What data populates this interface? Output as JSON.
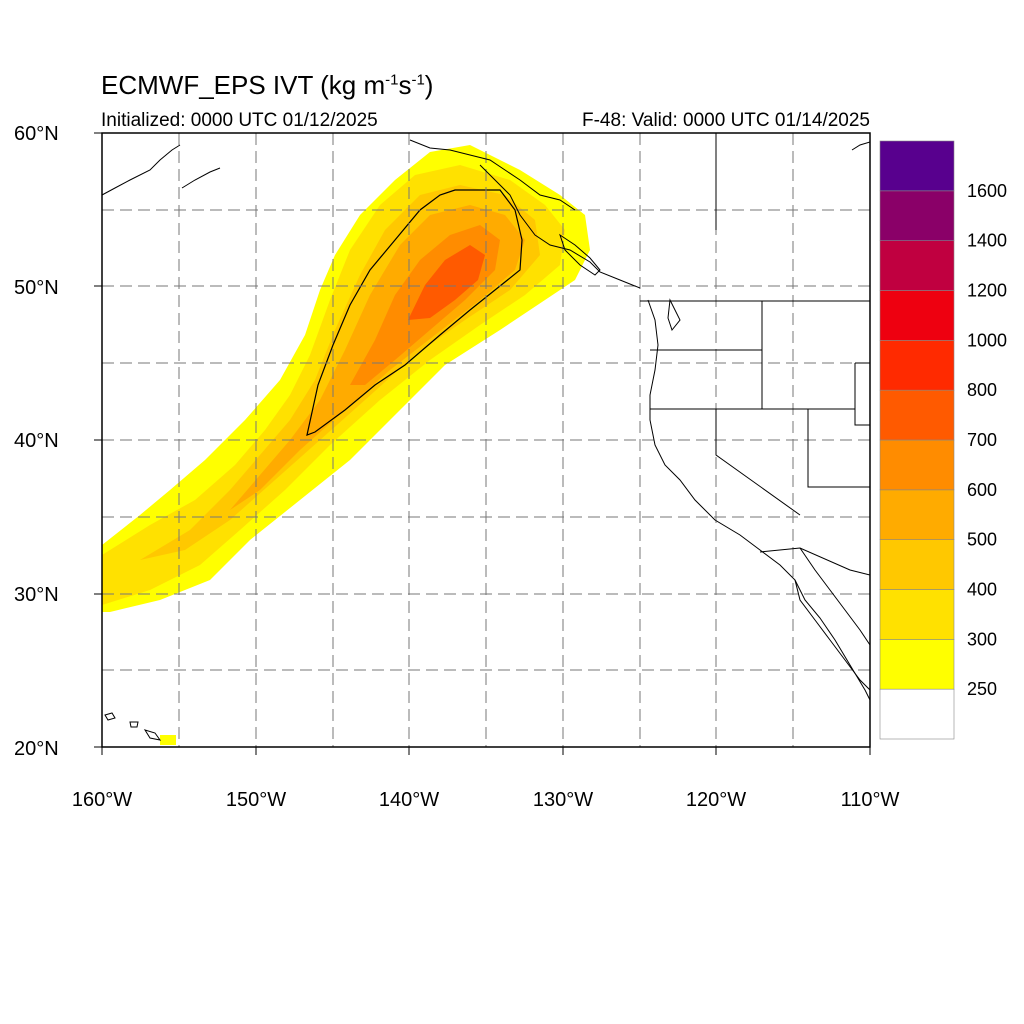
{
  "title": {
    "main": "ECMWF_EPS IVT (kg m",
    "sup1": "-1",
    "mid": "s",
    "sup2": "-1",
    "end": ")"
  },
  "subtitle": {
    "initialized": "Initialized: 0000 UTC 01/12/2025",
    "valid": "F-48: Valid: 0000 UTC 01/14/2025"
  },
  "map": {
    "lon_range": [
      -160,
      -110
    ],
    "lat_range": [
      20,
      60
    ],
    "grid_spacing_deg": 5,
    "lat_ticks": [
      {
        "value": 60,
        "label": "60°N"
      },
      {
        "value": 50,
        "label": "50°N"
      },
      {
        "value": 40,
        "label": "40°N"
      },
      {
        "value": 30,
        "label": "30°N"
      },
      {
        "value": 20,
        "label": "20°N"
      }
    ],
    "lon_ticks": [
      {
        "value": -160,
        "label": "160°W"
      },
      {
        "value": -150,
        "label": "150°W"
      },
      {
        "value": -140,
        "label": "140°W"
      },
      {
        "value": -130,
        "label": "130°W"
      },
      {
        "value": -120,
        "label": "120°W"
      },
      {
        "value": -110,
        "label": "110°W"
      }
    ]
  },
  "colorbar": {
    "levels": [
      "250",
      "300",
      "400",
      "500",
      "600",
      "700",
      "800",
      "1000",
      "1200",
      "1400",
      "1600"
    ],
    "colors": [
      "#ffffff",
      "#ffff00",
      "#ffe100",
      "#ffc800",
      "#ffab00",
      "#ff8c00",
      "#ff5a00",
      "#ff2a00",
      "#ee0010",
      "#c00040",
      "#8a0068",
      "#58008e"
    ]
  },
  "colors": {
    "grid": "#777777",
    "coast": "#000000"
  }
}
